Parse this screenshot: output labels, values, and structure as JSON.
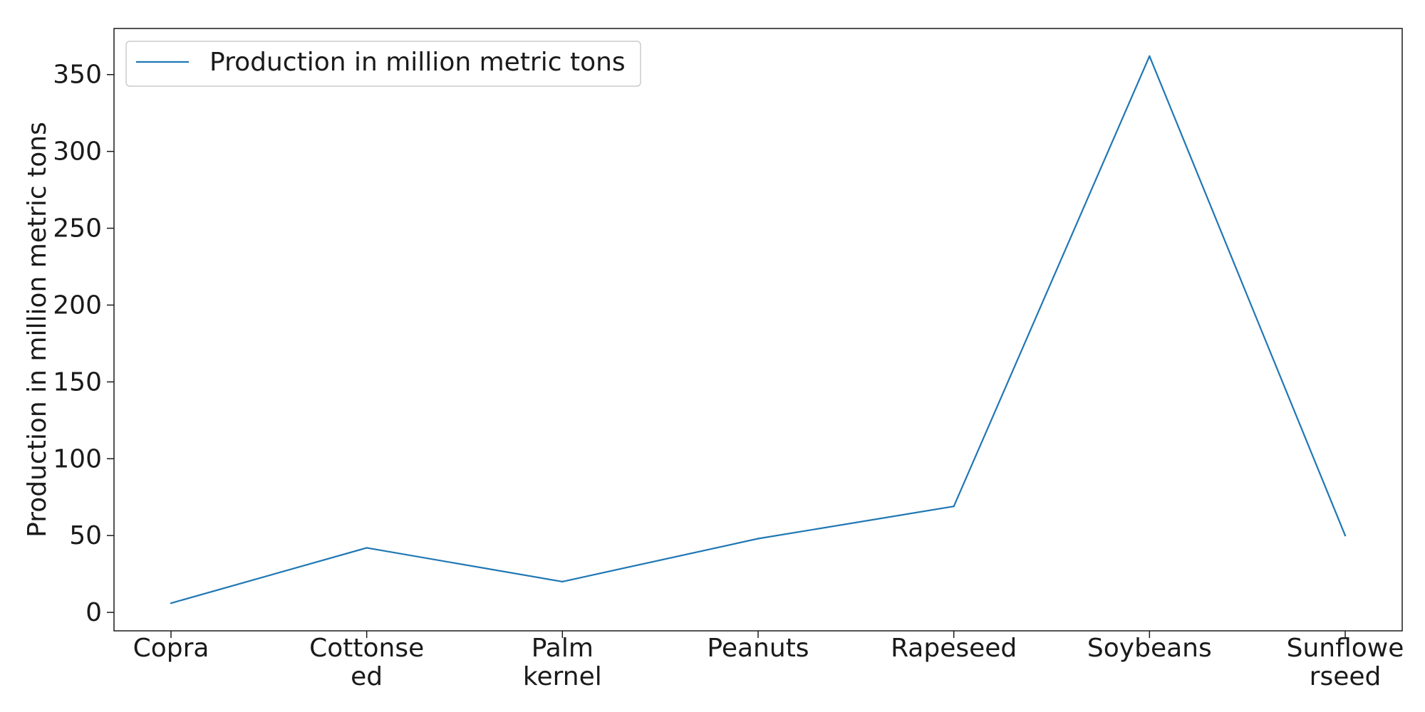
{
  "chart_data": {
    "type": "line",
    "categories": [
      [
        "Copra"
      ],
      [
        "Cottonse",
        "ed"
      ],
      [
        "Palm",
        "kernel"
      ],
      [
        "Peanuts"
      ],
      [
        "Rapeseed"
      ],
      [
        "Soybeans"
      ],
      [
        "Sunflowe",
        "rseed"
      ]
    ],
    "series": [
      {
        "name": "Production in million metric tons",
        "values": [
          6,
          42,
          20,
          48,
          69,
          362,
          50
        ]
      }
    ],
    "xlabel": "",
    "ylabel": "Production in million metric tons",
    "ylim": [
      -12,
      380
    ],
    "yticks": [
      0,
      50,
      100,
      150,
      200,
      250,
      300,
      350
    ],
    "grid": false,
    "legend_position": "top-left",
    "colors": {
      "line": "#1f77b4",
      "axis": "#1a1a1a",
      "legend_border": "#cccccc"
    }
  }
}
